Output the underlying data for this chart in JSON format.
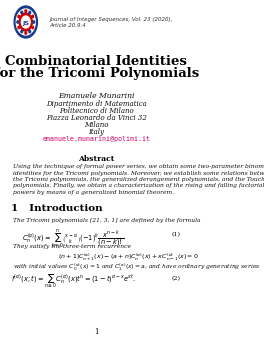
{
  "bg_color": "#ffffff",
  "journal_line1": "Journal of Integer Sequences, Vol. 23 (2020),",
  "journal_line2": "Article 20.9.4",
  "title_line1": "Combinatorial Identities",
  "title_line2": "for the Tricomi Polynomials",
  "author": "Emanuele Munarini",
  "affil1": "Dipartimento di Matematica",
  "affil2": "Politecnico di Milano",
  "affil3": "Piazza Leonardo da Vinci 32",
  "affil4": "Milano",
  "affil5": "Italy",
  "email": "emanuele.munarini@polimi.it",
  "abstract_title": "Abstract",
  "abstract_text": "Using the technique of formal power series, we obtain some two-parameter binomial\nidentities for the Tricomi polynomials. Moreover, we establish some relations between\nthe Tricomi polynomials, the generalized derangement polynomials, and the Touchard\npolynomials. Finally, we obtain a characterization of the rising and falling factorial\npowers by means of a generalized binomial theorem.",
  "section": "1   Introduction",
  "intro_text1": "The Tricomi polynomials [21, 3, 1] are defined by the formula",
  "eq1_label": "(1)",
  "recurrence_text": "They satisfy the three-term recurrence",
  "recurrence_eq": "(n + 1)Cⁿ₊¹α(x) − (a + n)Cⁿα(x) + xCⁿ⁻¹α(x) = 0",
  "initial_text": "with initial values C₀α(x) = 1 and C₁α(x) = a, and have ordinary generating series",
  "eq2_label": "(2)",
  "page_num": "1",
  "text_color": "#1a1a1a",
  "email_color": "#cc0066",
  "section_color": "#000000"
}
